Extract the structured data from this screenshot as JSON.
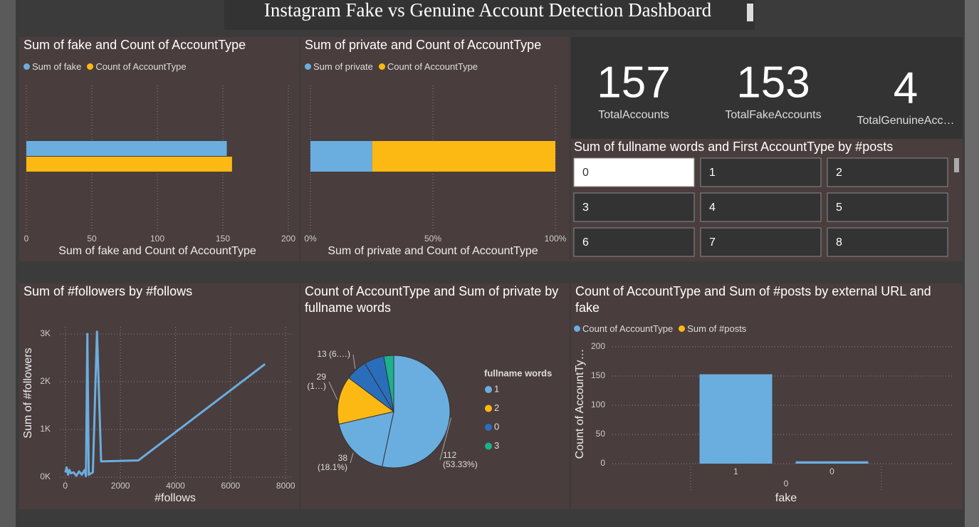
{
  "title": "Instagram Fake vs Genuine Account Detection Dashboard",
  "cards": [
    {
      "value": 157,
      "label": "TotalAccounts"
    },
    {
      "value": 153,
      "label": "TotalFakeAccounts"
    },
    {
      "value": 4,
      "label": "TotalGenuineAcc…"
    }
  ],
  "slicer": {
    "title": "Sum of fullname words and First AccountType by #posts",
    "items": [
      "0",
      "1",
      "2",
      "3",
      "4",
      "5",
      "6",
      "7",
      "8"
    ],
    "selected": 0
  },
  "chart_data": [
    {
      "type": "hbar",
      "title": "Sum of fake and Count of AccountType",
      "xlabel": "Sum of fake and Count of AccountType",
      "series": [
        {
          "name": "Sum of fake",
          "color": "#6aaee0",
          "values": [
            153
          ]
        },
        {
          "name": "Count of AccountType",
          "color": "#fdb913",
          "values": [
            157
          ]
        }
      ],
      "xlim": [
        0,
        200
      ],
      "xticks": [
        0,
        50,
        100,
        150,
        200
      ],
      "grid": true
    },
    {
      "type": "stacked100",
      "title": "Sum of private and Count of AccountType",
      "xlabel": "Sum of private and Count of AccountType",
      "series": [
        {
          "name": "Sum of private",
          "color": "#6aaee0",
          "values": [
            25.2
          ]
        },
        {
          "name": "Count of AccountType",
          "color": "#fdb913",
          "values": [
            74.8
          ]
        }
      ],
      "xlim": [
        0,
        100
      ],
      "xticks": [
        {
          "value": 0,
          "label": "0%"
        },
        {
          "value": 50,
          "label": "50%"
        },
        {
          "value": 100,
          "label": "100%"
        }
      ],
      "grid": true
    },
    {
      "type": "line",
      "title": "Sum of #followers by #follows",
      "xlabel": "#follows",
      "ylabel": "Sum of #followers",
      "color": "#6aaee0",
      "x": [
        0,
        50,
        100,
        150,
        200,
        300,
        400,
        500,
        600,
        700,
        750,
        800,
        850,
        1000,
        1150,
        1300,
        2650,
        7250
      ],
      "values": [
        100,
        200,
        50,
        150,
        80,
        100,
        30,
        120,
        50,
        150,
        20,
        3000,
        50,
        100,
        3050,
        330,
        350,
        2370
      ],
      "xlim": [
        -200,
        8200
      ],
      "xticks": [
        0,
        2000,
        4000,
        6000,
        8000
      ],
      "ylim": [
        -150,
        3150
      ],
      "yticks": [
        {
          "value": 0,
          "label": "0K"
        },
        {
          "value": 1000,
          "label": "1K"
        },
        {
          "value": 2000,
          "label": "2K"
        },
        {
          "value": 3000,
          "label": "3K"
        }
      ],
      "grid": true
    },
    {
      "type": "pie",
      "title": "Count of AccountType and Sum of private by fullname words",
      "values": [
        112,
        38,
        29,
        13,
        12,
        6
      ],
      "colors": [
        "#6aaee0",
        "#6aaee0",
        "#fdb913",
        "#2a6ebb",
        "#2a6ebb",
        "#1bb28c"
      ],
      "value_labels": [
        "112 (53.33%)",
        "38 (18.1%)",
        "29 (1…)",
        "13 (6.…)",
        null,
        null
      ],
      "legend_title": "fullname words",
      "legend": [
        {
          "label": "1",
          "color": "#6aaee0"
        },
        {
          "label": "2",
          "color": "#fdb913"
        },
        {
          "label": "0",
          "color": "#2a6ebb"
        },
        {
          "label": "3",
          "color": "#1bb28c"
        }
      ]
    },
    {
      "type": "bar",
      "title": "Count of AccountType and Sum of #posts by external URL and fake",
      "xlabel": "fake",
      "ylabel": "Count of AccountTy…",
      "categories": [
        "1",
        "0"
      ],
      "group_labels": [
        "0"
      ],
      "series": [
        {
          "name": "Count of AccountType",
          "color": "#6aaee0",
          "values": [
            153,
            4
          ]
        },
        {
          "name": "Sum of #posts",
          "color": "#fdb913",
          "values": [
            null,
            null
          ]
        }
      ],
      "ylim": [
        0,
        200
      ],
      "yticks": [
        0,
        50,
        100,
        150,
        200
      ],
      "grid": true
    }
  ]
}
